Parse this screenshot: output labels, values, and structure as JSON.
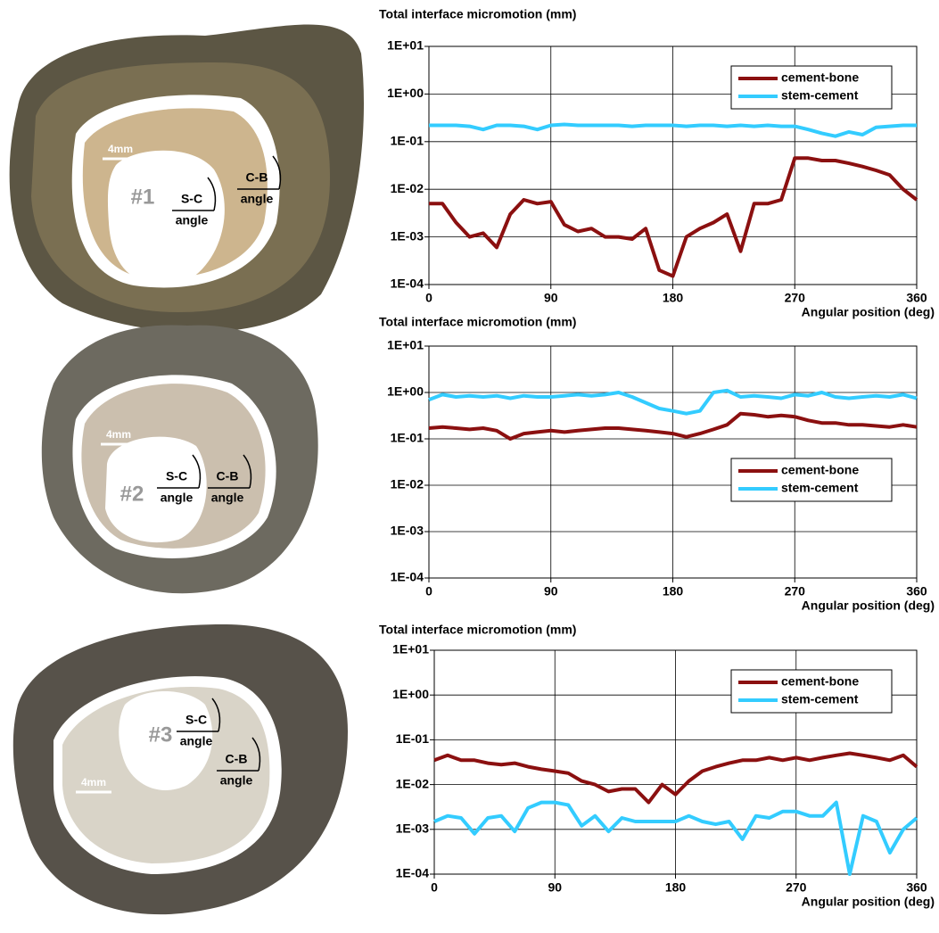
{
  "specimens": [
    {
      "id": "#1",
      "scale": "4mm",
      "sc": "S-C",
      "sc_angle": "angle",
      "cb": "C-B",
      "cb_angle": "angle"
    },
    {
      "id": "#2",
      "scale": "4mm",
      "sc": "S-C",
      "sc_angle": "angle",
      "cb": "C-B",
      "cb_angle": "angle"
    },
    {
      "id": "#3",
      "scale": "4mm",
      "sc": "S-C",
      "sc_angle": "angle",
      "cb": "C-B",
      "cb_angle": "angle"
    }
  ],
  "chart_data": [
    {
      "type": "line",
      "title": "Total interface micromotion (mm)",
      "x_label": "Angular position (deg)",
      "log_y": true,
      "grid": true,
      "legend": "upper right",
      "xlim": [
        0,
        360
      ],
      "xticks": [
        0,
        90,
        180,
        270,
        360
      ],
      "ylim": [
        0.0001,
        10
      ],
      "yticks": [
        {
          "value": 0.0001,
          "label": "1E-04"
        },
        {
          "value": 0.001,
          "label": "1E-03"
        },
        {
          "value": 0.01,
          "label": "1E-02"
        },
        {
          "value": 0.1,
          "label": "1E-01"
        },
        {
          "value": 1,
          "label": "1E+00"
        },
        {
          "value": 10,
          "label": "1E+01"
        }
      ],
      "x": [
        0,
        10,
        20,
        30,
        40,
        50,
        60,
        70,
        80,
        90,
        100,
        110,
        120,
        130,
        140,
        150,
        160,
        170,
        180,
        190,
        200,
        210,
        220,
        230,
        240,
        250,
        260,
        270,
        280,
        290,
        300,
        310,
        320,
        330,
        340,
        350,
        360
      ],
      "series": [
        {
          "name": "cement-bone",
          "color": "#8b1010",
          "values": [
            0.005,
            0.005,
            0.002,
            0.001,
            0.0012,
            0.0006,
            0.003,
            0.006,
            0.005,
            0.0055,
            0.0018,
            0.0013,
            0.0015,
            0.001,
            0.001,
            0.0009,
            0.0015,
            0.0002,
            0.00015,
            0.001,
            0.0015,
            0.002,
            0.003,
            0.0005,
            0.005,
            0.005,
            0.006,
            0.045,
            0.045,
            0.04,
            0.04,
            0.035,
            0.03,
            0.025,
            0.02,
            0.01,
            0.006
          ]
        },
        {
          "name": "stem-cement",
          "color": "#33ccff",
          "values": [
            0.22,
            0.22,
            0.22,
            0.21,
            0.18,
            0.22,
            0.22,
            0.21,
            0.18,
            0.22,
            0.23,
            0.22,
            0.22,
            0.22,
            0.22,
            0.21,
            0.22,
            0.22,
            0.22,
            0.21,
            0.22,
            0.22,
            0.21,
            0.22,
            0.21,
            0.22,
            0.21,
            0.21,
            0.18,
            0.15,
            0.13,
            0.16,
            0.14,
            0.2,
            0.21,
            0.22,
            0.22
          ]
        }
      ]
    },
    {
      "type": "line",
      "title": "Total interface micromotion (mm)",
      "x_label": "Angular position (deg)",
      "log_y": true,
      "grid": true,
      "legend": "center right",
      "xlim": [
        0,
        360
      ],
      "xticks": [
        0,
        90,
        180,
        270,
        360
      ],
      "ylim": [
        0.0001,
        10
      ],
      "yticks": [
        {
          "value": 0.0001,
          "label": "1E-04"
        },
        {
          "value": 0.001,
          "label": "1E-03"
        },
        {
          "value": 0.01,
          "label": "1E-02"
        },
        {
          "value": 0.1,
          "label": "1E-01"
        },
        {
          "value": 1,
          "label": "1E+00"
        },
        {
          "value": 10,
          "label": "1E+01"
        }
      ],
      "x": [
        0,
        10,
        20,
        30,
        40,
        50,
        60,
        70,
        80,
        90,
        100,
        110,
        120,
        130,
        140,
        150,
        160,
        170,
        180,
        190,
        200,
        210,
        220,
        230,
        240,
        250,
        260,
        270,
        280,
        290,
        300,
        310,
        320,
        330,
        340,
        350,
        360
      ],
      "series": [
        {
          "name": "cement-bone",
          "color": "#8b1010",
          "values": [
            0.17,
            0.18,
            0.17,
            0.16,
            0.17,
            0.15,
            0.1,
            0.13,
            0.14,
            0.15,
            0.14,
            0.15,
            0.16,
            0.17,
            0.17,
            0.16,
            0.15,
            0.14,
            0.13,
            0.11,
            0.13,
            0.16,
            0.2,
            0.35,
            0.33,
            0.3,
            0.32,
            0.3,
            0.25,
            0.22,
            0.22,
            0.2,
            0.2,
            0.19,
            0.18,
            0.2,
            0.18
          ]
        },
        {
          "name": "stem-cement",
          "color": "#33ccff",
          "values": [
            0.7,
            0.9,
            0.8,
            0.85,
            0.8,
            0.85,
            0.75,
            0.85,
            0.8,
            0.8,
            0.85,
            0.9,
            0.85,
            0.9,
            1.0,
            0.8,
            0.6,
            0.45,
            0.4,
            0.35,
            0.4,
            1.0,
            1.1,
            0.8,
            0.85,
            0.8,
            0.75,
            0.9,
            0.85,
            1.0,
            0.8,
            0.75,
            0.8,
            0.85,
            0.8,
            0.9,
            0.75
          ]
        }
      ]
    },
    {
      "type": "line",
      "title": "Total interface micromotion (mm)",
      "x_label": "Angular position (deg)",
      "log_y": true,
      "grid": true,
      "legend": "upper right",
      "xlim": [
        0,
        360
      ],
      "xticks": [
        0,
        90,
        180,
        270,
        360
      ],
      "ylim": [
        0.0001,
        10
      ],
      "yticks": [
        {
          "value": 0.0001,
          "label": "1E-04"
        },
        {
          "value": 0.001,
          "label": "1E-03"
        },
        {
          "value": 0.01,
          "label": "1E-02"
        },
        {
          "value": 0.1,
          "label": "1E-01"
        },
        {
          "value": 1,
          "label": "1E+00"
        },
        {
          "value": 10,
          "label": "1E+01"
        }
      ],
      "x": [
        0,
        10,
        20,
        30,
        40,
        50,
        60,
        70,
        80,
        90,
        100,
        110,
        120,
        130,
        140,
        150,
        160,
        170,
        180,
        190,
        200,
        210,
        220,
        230,
        240,
        250,
        260,
        270,
        280,
        290,
        300,
        310,
        320,
        330,
        340,
        350,
        360
      ],
      "series": [
        {
          "name": "cement-bone",
          "color": "#8b1010",
          "values": [
            0.035,
            0.045,
            0.035,
            0.035,
            0.03,
            0.028,
            0.03,
            0.025,
            0.022,
            0.02,
            0.018,
            0.012,
            0.01,
            0.007,
            0.008,
            0.008,
            0.004,
            0.01,
            0.006,
            0.012,
            0.02,
            0.025,
            0.03,
            0.035,
            0.035,
            0.04,
            0.035,
            0.04,
            0.035,
            0.04,
            0.045,
            0.05,
            0.045,
            0.04,
            0.035,
            0.045,
            0.025
          ]
        },
        {
          "name": "stem-cement",
          "color": "#33ccff",
          "values": [
            0.0015,
            0.002,
            0.0018,
            0.0008,
            0.0018,
            0.002,
            0.0009,
            0.003,
            0.004,
            0.004,
            0.0035,
            0.0012,
            0.002,
            0.0009,
            0.0018,
            0.0015,
            0.0015,
            0.0015,
            0.0015,
            0.002,
            0.0015,
            0.0013,
            0.0015,
            0.0006,
            0.002,
            0.0018,
            0.0025,
            0.0025,
            0.002,
            0.002,
            0.004,
            0.0001,
            0.002,
            0.0015,
            0.0003,
            0.001,
            0.0018
          ]
        }
      ]
    }
  ]
}
